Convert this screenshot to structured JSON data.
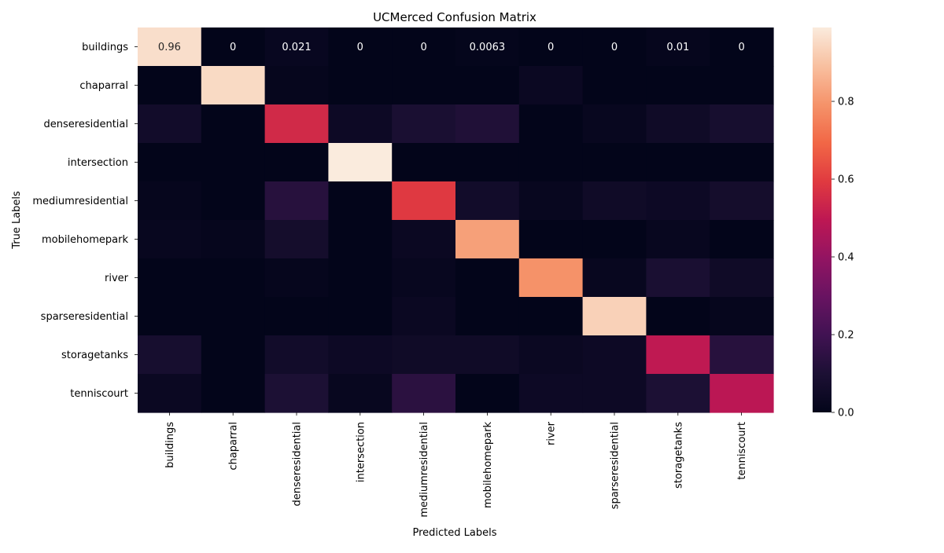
{
  "chart_data": {
    "type": "heatmap",
    "title": "UCMerced Confusion Matrix",
    "xlabel": "Predicted Labels",
    "ylabel": "True Labels",
    "categories": [
      "buildings",
      "chaparral",
      "denseresidential",
      "intersection",
      "mediumresidential",
      "mobilehomepark",
      "river",
      "sparseresidential",
      "storagetanks",
      "tenniscourt"
    ],
    "rows": [
      "buildings",
      "chaparral",
      "denseresidential",
      "intersection",
      "mediumresidential",
      "mobilehomepark",
      "river",
      "sparseresidential",
      "storagetanks",
      "tenniscourt"
    ],
    "values": [
      [
        0.96,
        0,
        0.021,
        0,
        0,
        0.0063,
        0,
        0,
        0.01,
        0
      ],
      [
        0.0,
        0.95,
        0.01,
        0.0,
        0.0,
        0.0,
        0.03,
        0.0,
        0.0,
        0.0
      ],
      [
        0.06,
        0.0,
        0.55,
        0.04,
        0.09,
        0.11,
        0.0,
        0.02,
        0.05,
        0.08
      ],
      [
        0.0,
        0.0,
        0.0,
        0.99,
        0.0,
        0.0,
        0.0,
        0.0,
        0.0,
        0.0
      ],
      [
        0.01,
        0.0,
        0.13,
        0.0,
        0.59,
        0.06,
        0.02,
        0.05,
        0.04,
        0.07
      ],
      [
        0.02,
        0.01,
        0.07,
        0.0,
        0.03,
        0.82,
        0.0,
        0.0,
        0.02,
        0.0
      ],
      [
        0.0,
        0.0,
        0.01,
        0.0,
        0.02,
        0.0,
        0.79,
        0.02,
        0.09,
        0.05
      ],
      [
        0.0,
        0.0,
        0.0,
        0.0,
        0.03,
        0.0,
        0.0,
        0.93,
        0.0,
        0.01
      ],
      [
        0.08,
        0.0,
        0.06,
        0.04,
        0.05,
        0.05,
        0.03,
        0.04,
        0.5,
        0.13
      ],
      [
        0.03,
        0.0,
        0.1,
        0.02,
        0.14,
        0.0,
        0.04,
        0.04,
        0.1,
        0.49
      ]
    ],
    "annotated_row": 0,
    "cell_labels_row0": [
      "0.96",
      "0",
      "0.021",
      "0",
      "0",
      "0.0063",
      "0",
      "0",
      "0.01",
      "0"
    ],
    "colorbar": {
      "min": 0.0,
      "max": 0.99,
      "ticks": [
        "0.0",
        "0.2",
        "0.4",
        "0.6",
        "0.8"
      ],
      "colormap": "rocket"
    }
  }
}
